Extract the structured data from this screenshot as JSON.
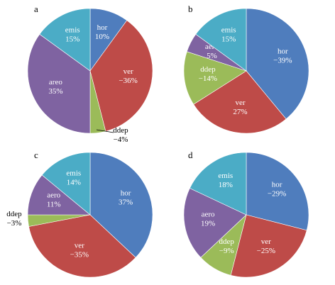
{
  "colors": {
    "hor": "#4f7dbd",
    "ver": "#be4b48",
    "ddep": "#9bbb59",
    "aero": "#7f63a1",
    "emis": "#4bacc6"
  },
  "chart_data": [
    {
      "type": "pie",
      "panel": "a",
      "slices": [
        {
          "key": "hor",
          "name": "hor",
          "value": 10,
          "label": "10%"
        },
        {
          "key": "ver",
          "name": "ver",
          "value": 36,
          "label": "−36%"
        },
        {
          "key": "ddep",
          "name": "ddep",
          "value": 4,
          "label": "−4%"
        },
        {
          "key": "aero",
          "name": "areo",
          "value": 35,
          "label": "35%"
        },
        {
          "key": "emis",
          "name": "emis",
          "value": 15,
          "label": "15%"
        }
      ]
    },
    {
      "type": "pie",
      "panel": "b",
      "slices": [
        {
          "key": "hor",
          "name": "hor",
          "value": 39,
          "label": "−39%"
        },
        {
          "key": "ver",
          "name": "ver",
          "value": 27,
          "label": "27%"
        },
        {
          "key": "ddep",
          "name": "ddep",
          "value": 14,
          "label": "−14%"
        },
        {
          "key": "aero",
          "name": "aero",
          "value": 5,
          "label": "5%"
        },
        {
          "key": "emis",
          "name": "emis",
          "value": 15,
          "label": "15%"
        }
      ]
    },
    {
      "type": "pie",
      "panel": "c",
      "slices": [
        {
          "key": "hor",
          "name": "hor",
          "value": 37,
          "label": "37%"
        },
        {
          "key": "ver",
          "name": "ver",
          "value": 35,
          "label": "−35%"
        },
        {
          "key": "ddep",
          "name": "ddep",
          "value": 3,
          "label": "−3%"
        },
        {
          "key": "aero",
          "name": "aero",
          "value": 11,
          "label": "11%"
        },
        {
          "key": "emis",
          "name": "emis",
          "value": 14,
          "label": "14%"
        }
      ]
    },
    {
      "type": "pie",
      "panel": "d",
      "slices": [
        {
          "key": "hor",
          "name": "hor",
          "value": 29,
          "label": "−29%"
        },
        {
          "key": "ver",
          "name": "ver",
          "value": 25,
          "label": "−25%"
        },
        {
          "key": "ddep",
          "name": "ddep",
          "value": 9,
          "label": "−9%"
        },
        {
          "key": "aero",
          "name": "aero",
          "value": 19,
          "label": "19%"
        },
        {
          "key": "emis",
          "name": "emis",
          "value": 18,
          "label": "18%"
        }
      ]
    }
  ]
}
